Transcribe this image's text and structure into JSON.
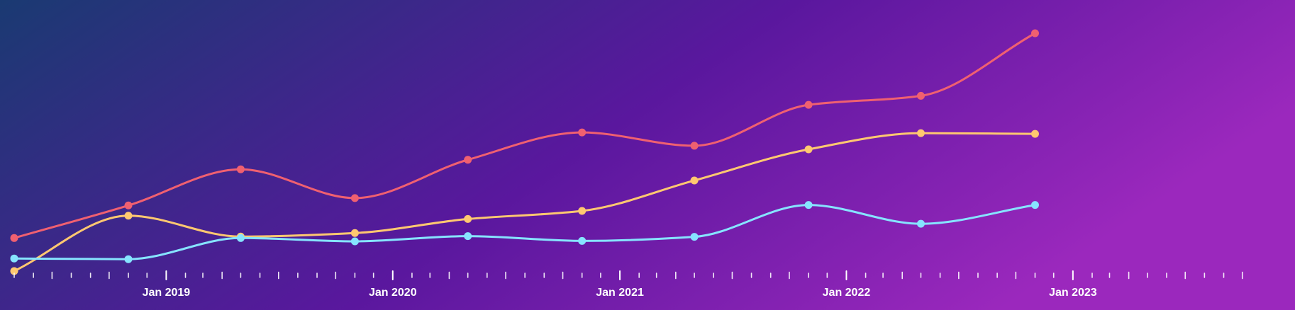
{
  "chart_data": {
    "type": "line",
    "curve": "smooth",
    "grid": false,
    "legend": "none",
    "background": {
      "gradient_from": "#1a3a72",
      "gradient_mid": "#5a179e",
      "gradient_to": "#9b28bd"
    },
    "x": [
      "2018-05-01",
      "2018-11-01",
      "2019-05-01",
      "2019-11-01",
      "2020-05-01",
      "2020-11-01",
      "2021-05-01",
      "2021-11-01",
      "2022-05-01",
      "2022-11-01"
    ],
    "x_axis": {
      "type": "date",
      "range": [
        "2018-05-01",
        "2023-10-15"
      ],
      "major_ticks": [
        "2019-01-01",
        "2020-01-01",
        "2021-01-01",
        "2022-01-01",
        "2023-01-01"
      ],
      "tick_labels": [
        "Jan 2019",
        "Jan 2020",
        "Jan 2021",
        "Jan 2022",
        "Jan 2023"
      ]
    },
    "y_axis": {
      "range": [
        0,
        100
      ],
      "visible": false
    },
    "series": [
      {
        "color": "#f06070",
        "values": [
          13.9,
          27.6,
          42.8,
          30.7,
          46.8,
          58.3,
          52.7,
          69.9,
          73.7,
          100.0
        ]
      },
      {
        "color": "#ffc870",
        "values": [
          0,
          23.3,
          14.5,
          16.0,
          21.9,
          25.3,
          38.1,
          51.2,
          58.0,
          57.7
        ]
      },
      {
        "color": "#86e4ff",
        "values": [
          5.3,
          5.0,
          13.9,
          12.5,
          14.7,
          12.7,
          14.4,
          27.8,
          19.9,
          27.8
        ]
      }
    ]
  }
}
